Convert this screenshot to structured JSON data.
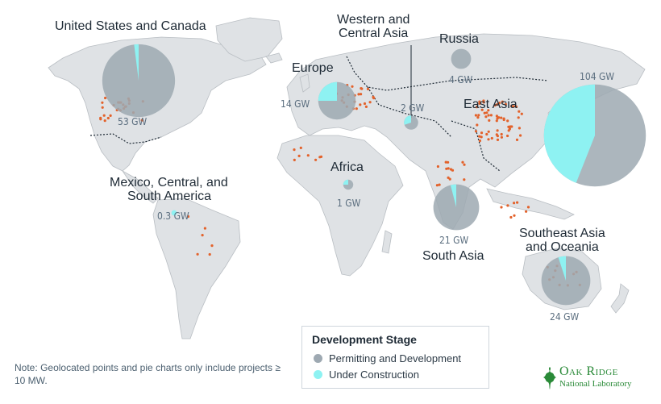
{
  "colors": {
    "land": "#dfe2e5",
    "land_stroke": "#b9bec3",
    "permitting": "#9ea9b2",
    "construction": "#8ef2f2",
    "points": "#e3622b",
    "title_text": "#1e2a35",
    "gw_text": "#5b6e7f"
  },
  "regions": [
    {
      "id": "us-canada",
      "label": "United States and Canada",
      "gw": "53 GW",
      "total_gw": 53,
      "construction_fraction": 0.02
    },
    {
      "id": "mexico-central-south-america",
      "label_line1": "Mexico, Central, and",
      "label_line2": "South America",
      "gw": "0.3 GW",
      "total_gw": 0.3,
      "construction_fraction": 1.0
    },
    {
      "id": "europe",
      "label": "Europe",
      "gw": "14 GW",
      "total_gw": 14,
      "construction_fraction": 0.25
    },
    {
      "id": "western-central-asia",
      "label_line1": "Western and",
      "label_line2": "Central Asia",
      "gw": "2 GW",
      "total_gw": 2,
      "construction_fraction": 0.3
    },
    {
      "id": "russia",
      "label": "Russia",
      "gw": "4 GW",
      "total_gw": 4,
      "construction_fraction": 0.0
    },
    {
      "id": "east-asia",
      "label": "East Asia",
      "gw": "104 GW",
      "total_gw": 104,
      "construction_fraction": 0.44
    },
    {
      "id": "africa",
      "label": "Africa",
      "gw": "1 GW",
      "total_gw": 1,
      "construction_fraction": 0.25
    },
    {
      "id": "south-asia",
      "label": "South Asia",
      "gw": "21 GW",
      "total_gw": 21,
      "construction_fraction": 0.04
    },
    {
      "id": "southeast-asia-oceania",
      "label_line1": "Southeast Asia",
      "label_line2": "and Oceania",
      "gw": "24 GW",
      "total_gw": 24,
      "construction_fraction": 0.05
    }
  ],
  "legend": {
    "title": "Development Stage",
    "items": [
      {
        "label": "Permitting and Development",
        "color": "#9ea9b2"
      },
      {
        "label": "Under Construction",
        "color": "#8ef2f2"
      }
    ]
  },
  "note": "Note: Geolocated points and pie charts only include projects ≥ 10 MW.",
  "logo": {
    "line1": "Oak Ridge",
    "line2": "National Laboratory"
  }
}
